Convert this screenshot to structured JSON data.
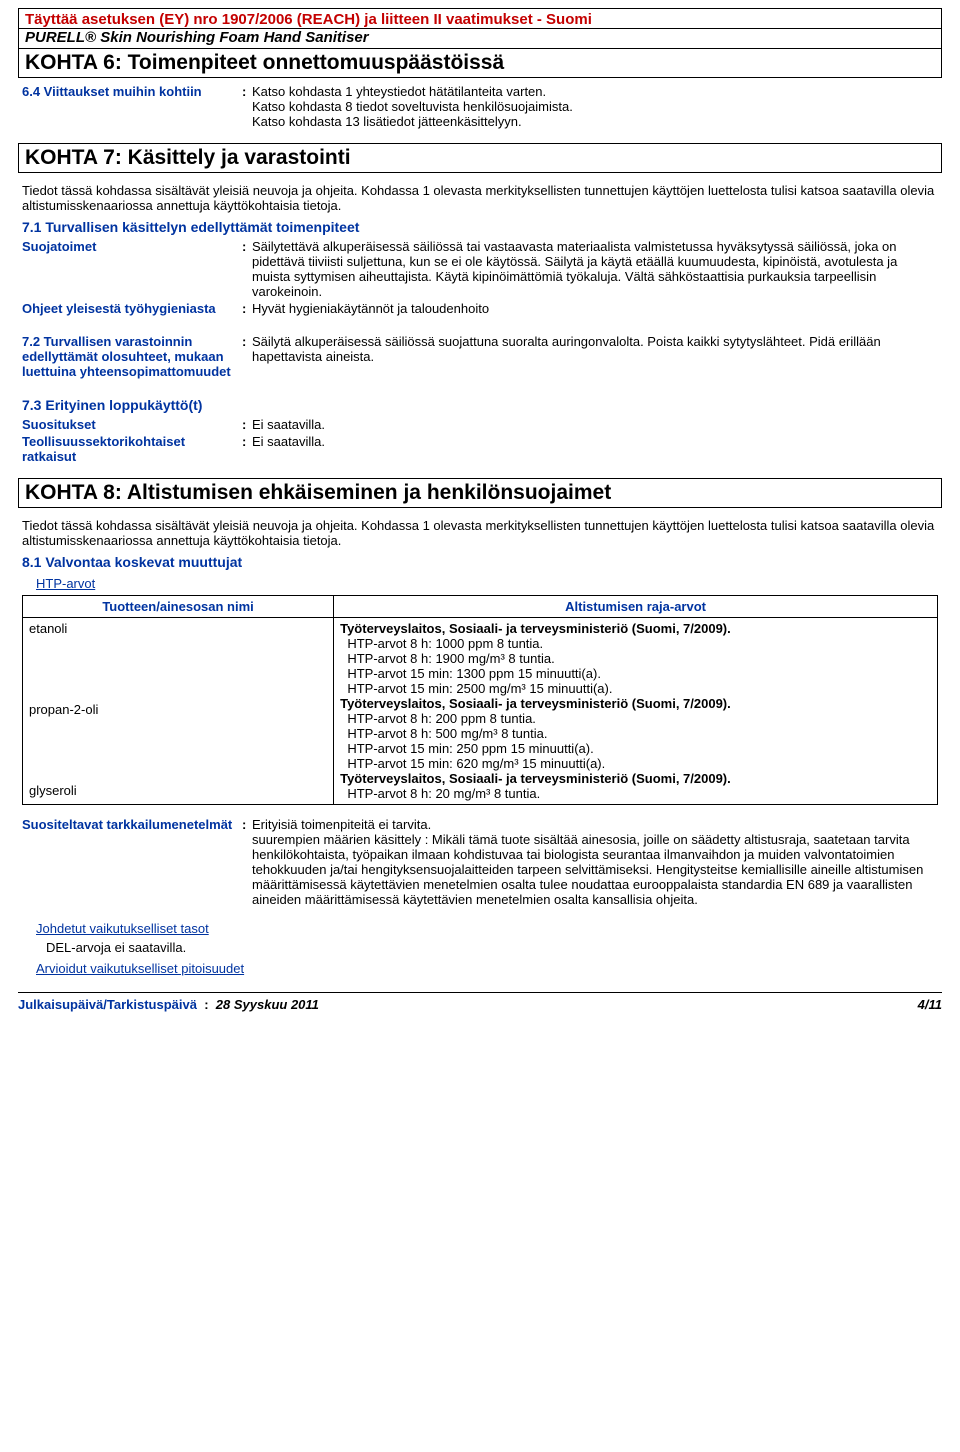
{
  "header": {
    "reach": "Täyttää asetuksen (EY) nro 1907/2006 (REACH) ja liitteen II vaatimukset - Suomi",
    "product": "PURELL® Skin Nourishing Foam Hand Sanitiser"
  },
  "section6": {
    "heading": "KOHTA 6: Toimenpiteet onnettomuuspäästöissä",
    "s64": {
      "label": "6.4 Viittaukset muihin kohtiin",
      "value": "Katso kohdasta 1 yhteystiedot hätätilanteita varten.\nKatso kohdasta 8 tiedot soveltuvista henkilösuojaimista.\nKatso kohdasta 13 lisätiedot jätteenkäsittelyyn."
    }
  },
  "section7": {
    "heading": "KOHTA 7: Käsittely ja varastointi",
    "intro": "Tiedot tässä kohdassa sisältävät yleisiä neuvoja ja ohjeita. Kohdassa 1 olevasta merkityksellisten tunnettujen käyttöjen luettelosta tulisi katsoa saatavilla olevia altistumisskenaariossa annettuja käyttökohtaisia tietoja.",
    "s71": {
      "heading": "7.1 Turvallisen käsittelyn edellyttämät toimenpiteet",
      "items": [
        {
          "label": "Suojatoimet",
          "value": "Säilytettävä alkuperäisessä säiliössä tai vastaavasta materiaalista valmistetussa hyväksytyssä säiliössä, joka on pidettävä tiiviisti suljettuna, kun se ei ole käytössä. Säilytä ja käytä etäällä kuumuudesta, kipinöistä, avotulesta ja muista syttymisen aiheuttajista. Käytä kipinöimättömiä työkaluja. Vältä sähköstaattisia purkauksia tarpeellisin varokeinoin."
        },
        {
          "label": "Ohjeet yleisestä työhygieniasta",
          "value": "Hyvät hygieniakäytännöt ja taloudenhoito"
        }
      ]
    },
    "s72": {
      "label": "7.2 Turvallisen varastoinnin edellyttämät olosuhteet, mukaan luettuina yhteensopimattomuudet",
      "value": "Säilytä alkuperäisessä säiliössä suojattuna suoralta auringonvalolta. Poista kaikki sytytyslähteet. Pidä erillään hapettavista aineista."
    },
    "s73": {
      "heading": "7.3 Erityinen loppukäyttö(t)",
      "items": [
        {
          "label": "Suositukset",
          "value": "Ei saatavilla."
        },
        {
          "label": "Teollisuussektorikohtaiset ratkaisut",
          "value": "Ei saatavilla."
        }
      ]
    }
  },
  "section8": {
    "heading": "KOHTA 8: Altistumisen ehkäiseminen ja henkilönsuojaimet",
    "intro": "Tiedot tässä kohdassa sisältävät yleisiä neuvoja ja ohjeita. Kohdassa 1 olevasta merkityksellisten tunnettujen käyttöjen luettelosta tulisi katsoa saatavilla olevia altistumisskenaariossa annettuja käyttökohtaisia tietoja.",
    "s81": {
      "heading": "8.1 Valvontaa koskevat muuttujat",
      "htp_link": "HTP-arvot",
      "columns": {
        "name": "Tuotteen/ainesosan nimi",
        "limits": "Altistumisen raja-arvot"
      },
      "rows": [
        {
          "name": "etanoli",
          "source": "Työterveyslaitos, Sosiaali- ja terveysministeriö (Suomi, 7/2009).",
          "lines": [
            "HTP-arvot 8 h: 1000 ppm 8 tuntia.",
            "HTP-arvot 8 h: 1900 mg/m³ 8 tuntia.",
            "HTP-arvot 15 min: 1300 ppm 15 minuutti(a).",
            "HTP-arvot 15 min: 2500 mg/m³ 15 minuutti(a)."
          ]
        },
        {
          "name": "propan-2-oli",
          "source": "Työterveyslaitos, Sosiaali- ja terveysministeriö (Suomi, 7/2009).",
          "lines": [
            "HTP-arvot 8 h: 200 ppm 8 tuntia.",
            "HTP-arvot 8 h: 500 mg/m³ 8 tuntia.",
            "HTP-arvot 15 min: 250 ppm 15 minuutti(a).",
            "HTP-arvot 15 min: 620 mg/m³ 15 minuutti(a)."
          ]
        },
        {
          "name": "glyseroli",
          "source": "Työterveyslaitos, Sosiaali- ja terveysministeriö (Suomi, 7/2009).",
          "lines": [
            "HTP-arvot 8 h: 20 mg/m³ 8 tuntia."
          ]
        }
      ],
      "monitoring": {
        "label": "Suositeltavat tarkkailumenetelmät",
        "value": "Erityisiä toimenpiteitä ei tarvita.\nsuurempien määrien käsittely : Mikäli tämä tuote sisältää ainesosia, joille on säädetty altistusraja, saatetaan tarvita henkilökohtaista, työpaikan ilmaan kohdistuvaa tai biologista seurantaa ilmanvaihdon ja muiden valvontatoimien tehokkuuden ja/tai hengityksensuojalaitteiden tarpeen selvittämiseksi. Hengitysteitse kemiallisille aineille altistumisen määrittämisessä käytettävien menetelmien osalta tulee noudattaa eurooppalaista standardia EN 689 ja vaarallisten aineiden määrittämisessä käytettävien menetelmien osalta kansallisia ohjeita."
      },
      "del_link": "Johdetut vaikutukselliset tasot",
      "del_text": "DEL-arvoja ei saatavilla.",
      "pnec_link": "Arvioidut vaikutukselliset pitoisuudet"
    }
  },
  "footer": {
    "label": "Julkaisupäivä/Tarkistuspäivä",
    "date": "28 Syyskuu 2011",
    "page": "4/11"
  },
  "colors": {
    "brand_red": "#c40000",
    "brand_blue": "#0033a0"
  }
}
